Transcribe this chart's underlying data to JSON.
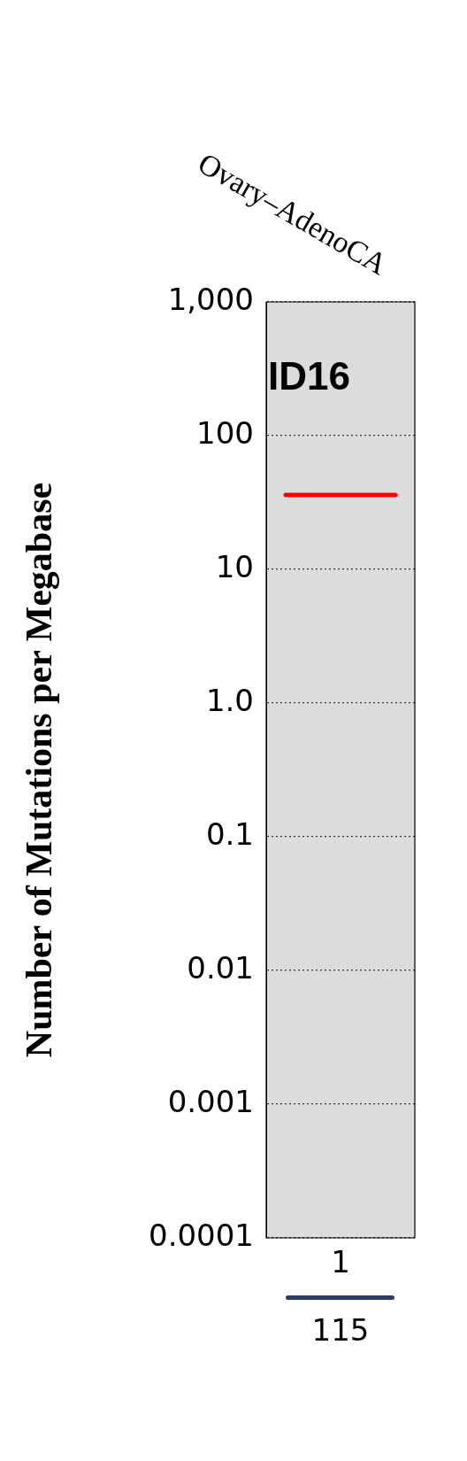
{
  "chart_data": {
    "type": "scatter",
    "categories": [
      "Ovary–AdenoCA"
    ],
    "ref_lines": [
      {
        "axis": "y",
        "value": 36,
        "color": "#ff0000"
      }
    ],
    "ylabel": "Number of Mutations per Megabase",
    "log": "y",
    "grid": "y",
    "ylim": [
      0.0001,
      1000
    ],
    "yticks": [
      {
        "value": 0.0001,
        "label": "0.0001"
      },
      {
        "value": 0.001,
        "label": "0.001"
      },
      {
        "value": 0.01,
        "label": "0.01"
      },
      {
        "value": 0.1,
        "label": "0.1"
      },
      {
        "value": 1,
        "label": "1.0"
      },
      {
        "value": 10,
        "label": "10"
      },
      {
        "value": 100,
        "label": "100"
      },
      {
        "value": 1000,
        "label": "1,000"
      }
    ],
    "annotations": [
      "ID16",
      "1",
      "115"
    ]
  }
}
